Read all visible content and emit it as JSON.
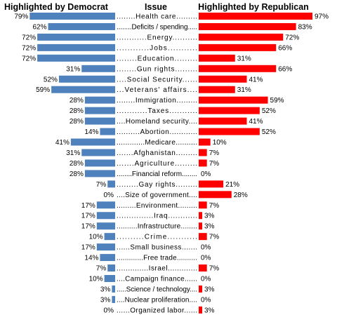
{
  "chart_data": {
    "type": "bar",
    "headers": {
      "left": "Highlighted by Democrat",
      "center": "Issue",
      "right": "Highlighted by Republican"
    },
    "colors": {
      "democrat": "#4F81BD",
      "republican": "#FF0000"
    },
    "series": [
      {
        "name": "Highlighted by Democrat",
        "values": [
          79,
          62,
          72,
          72,
          72,
          31,
          52,
          59,
          28,
          28,
          28,
          14,
          41,
          31,
          28,
          28,
          7,
          0,
          17,
          17,
          17,
          10,
          17,
          14,
          7,
          10,
          3,
          3,
          0
        ]
      },
      {
        "name": "Highlighted by Republican",
        "values": [
          97,
          83,
          72,
          66,
          31,
          66,
          41,
          31,
          59,
          52,
          41,
          52,
          10,
          7,
          7,
          0,
          21,
          28,
          7,
          3,
          3,
          7,
          0,
          0,
          7,
          0,
          3,
          0,
          3
        ]
      }
    ],
    "categories": [
      "........Health care.........",
      "........Deficits / spending.....",
      "............Energy..........",
      "............Jobs...........",
      "........Education.........",
      "........Gun rights.........",
      "....Social Security......",
      "...Veterans' affairs....",
      "........Immigration.........",
      "............Taxes...........",
      "....Homeland security....",
      "..........Abortion............",
      ".............Medicare..........",
      ".......Afghanistan.........",
      ".......Agriculture.........",
      "........Financial reform........",
      ".........Gay rights.........",
      "....Size of government....",
      ".........Environment.........",
      "...............Iraq............",
      "..........Infrastructure........",
      "..........Crime...........",
      "......Small business.......",
      ".............Free trade..........",
      "..............Israel.............",
      "....Campaign finance......",
      ".....Science / technology....",
      "....Nuclear proliferation....",
      "......Organized labor......"
    ]
  }
}
